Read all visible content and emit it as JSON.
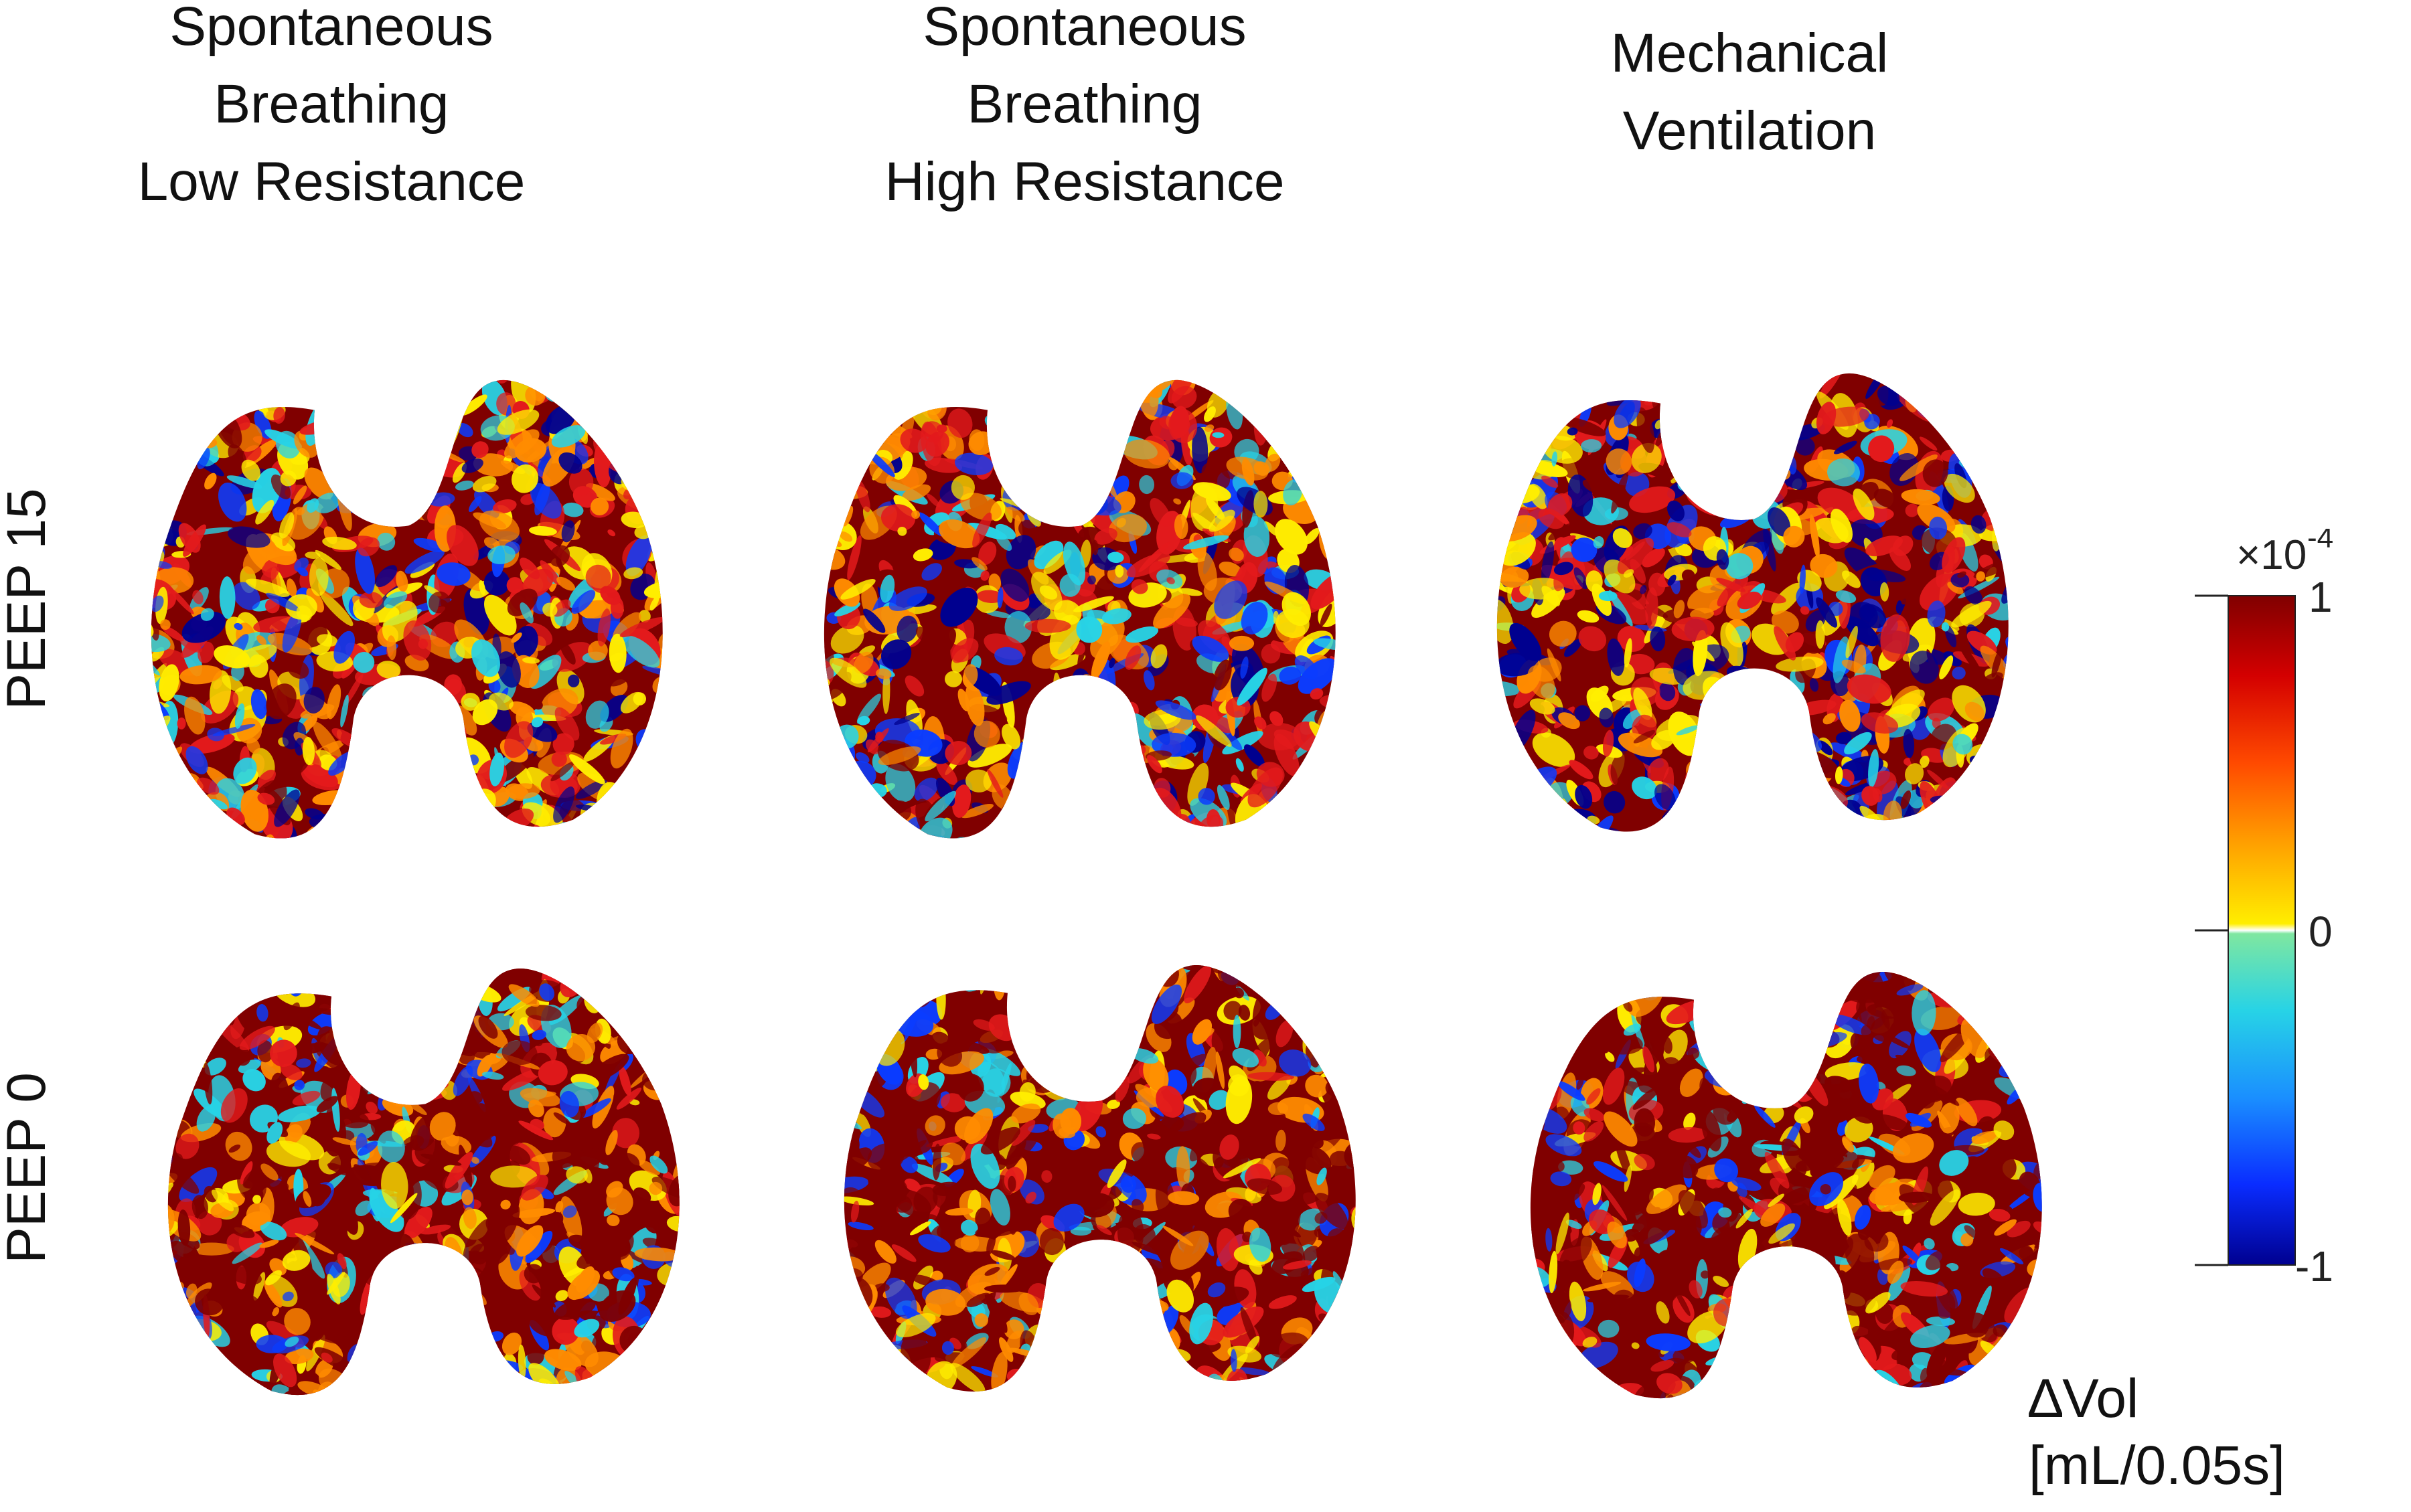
{
  "chart_data": {
    "type": "heatmap",
    "columns": [
      [
        "Spontaneous",
        "Breathing",
        "Low Resistance"
      ],
      [
        "Spontaneous",
        "Breathing",
        "High Resistance"
      ],
      [
        "Mechanical",
        "Ventilation"
      ]
    ],
    "rows": [
      "PEEP 15",
      "PEEP 0"
    ],
    "colorbar": {
      "exponent": "×10",
      "exponent_power": "-4",
      "tick_labels": [
        "1",
        "0",
        "-1"
      ],
      "range": [
        -1,
        1
      ],
      "colormap": "jet",
      "unit_symbol": "∆Vol",
      "unit": "[mL/0.05s]"
    }
  },
  "colors": {
    "dark_red": "#800000",
    "red": "#e31a1c",
    "orange": "#ff8c00",
    "yellow": "#ffee00",
    "light_green": "#7fe7a0",
    "cyan": "#27d3e6",
    "blue": "#0a3cff",
    "dark_blue": "#00008f"
  }
}
